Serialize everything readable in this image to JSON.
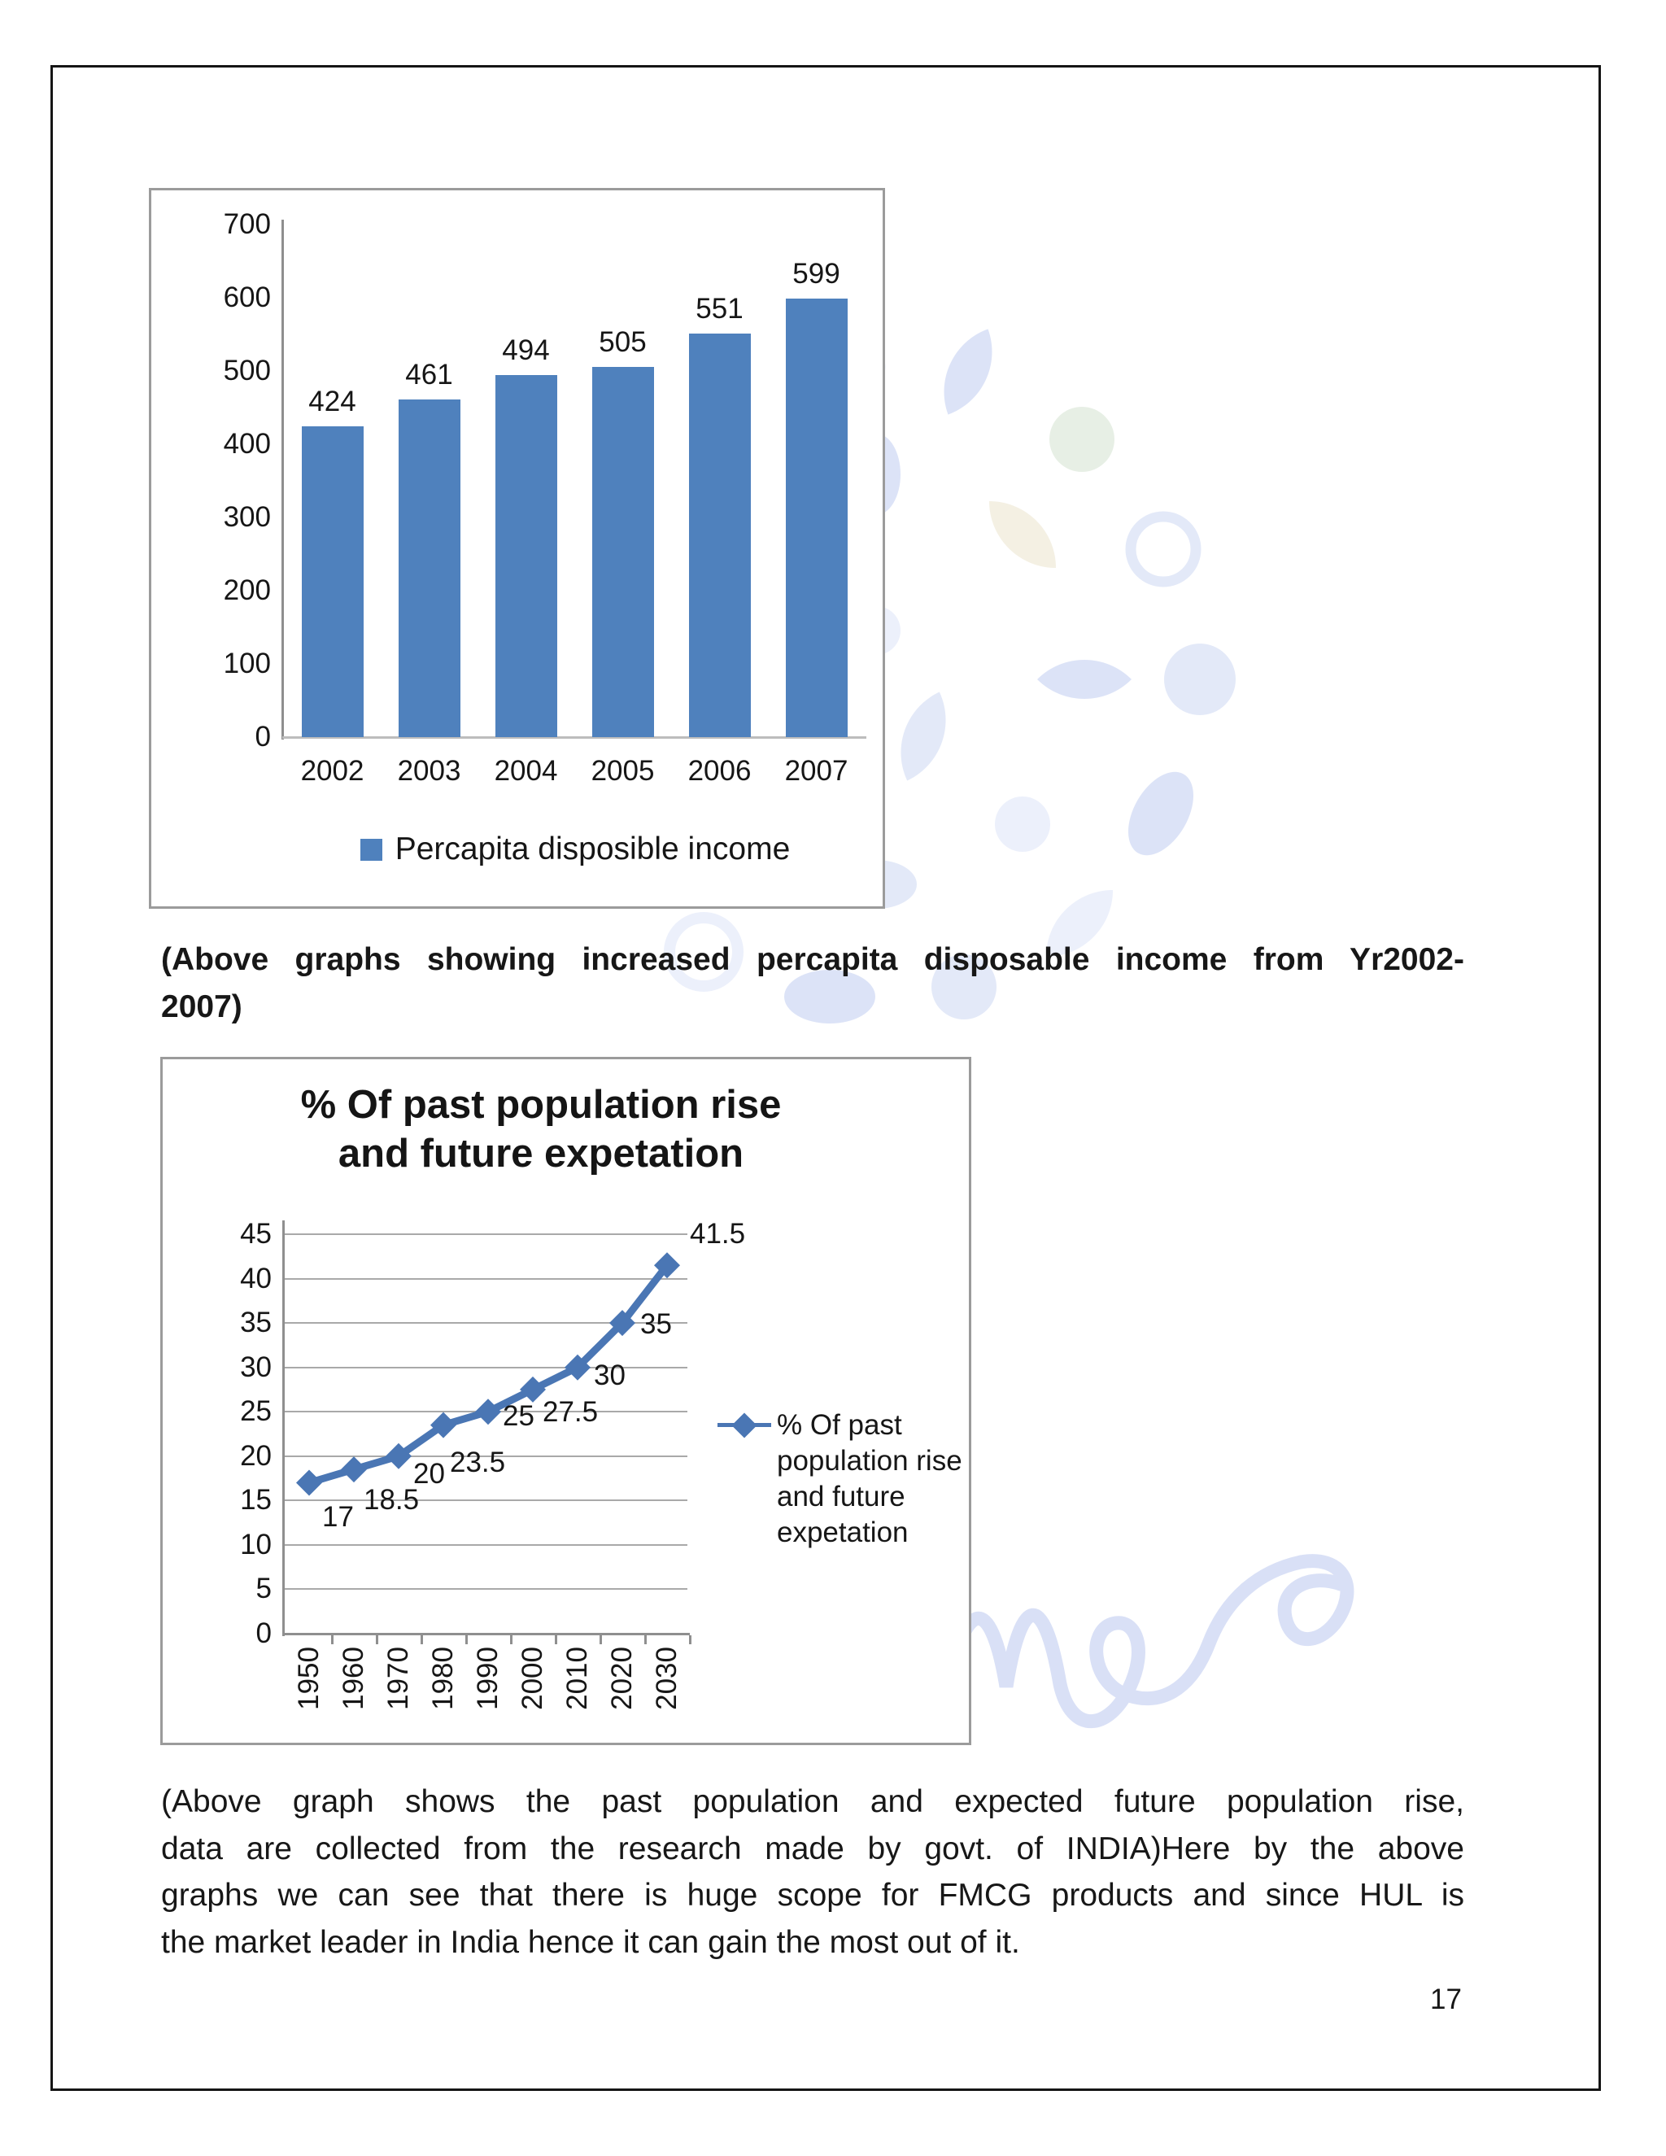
{
  "page": {
    "number": "17"
  },
  "caption1": {
    "lines": [
      "(Above graphs showing increased percapita disposable income from Yr2002-",
      "2007)"
    ]
  },
  "caption2": {
    "lines": [
      "(Above graph shows the past population and expected future population rise,",
      "data are collected from the research made by govt. of INDIA)Here by the above",
      "graphs we can see that there is huge scope for FMCG products and since HUL is",
      "the market leader in India hence it can gain the most out of it."
    ]
  },
  "watermark": {
    "color": "#c8d4f2"
  },
  "chart_data": [
    {
      "type": "bar",
      "categories": [
        "2002",
        "2003",
        "2004",
        "2005",
        "2006",
        "2007"
      ],
      "values": [
        424,
        461,
        494,
        505,
        551,
        599
      ],
      "value_labels": [
        "424",
        "461",
        "494",
        "505",
        "551",
        "599"
      ],
      "legend": "Percapita disposible income",
      "ylim": [
        0,
        700
      ],
      "yticks": [
        0,
        100,
        200,
        300,
        400,
        500,
        600,
        700
      ],
      "bar_color": "#4f81bd",
      "grid": false,
      "legend_position": "bottom",
      "title": "",
      "xlabel": "",
      "ylabel": ""
    },
    {
      "type": "line",
      "title": "% Of past population rise and future expetation",
      "title_lines": [
        "% Of past population rise",
        "and future expetation"
      ],
      "x": [
        "1950",
        "1960",
        "1970",
        "1980",
        "1990",
        "2000",
        "2010",
        "2020",
        "2030"
      ],
      "values": [
        17,
        18.5,
        20,
        23.5,
        25,
        27.5,
        30,
        35,
        41.5
      ],
      "labels": [
        "17",
        "18.5",
        "20",
        "23.5",
        "25",
        "27.5",
        "30",
        "35",
        "41.5"
      ],
      "legend": "% Of past population rise and future expetation",
      "legend_lines": [
        "% Of past",
        "population rise",
        "and future",
        "expetation"
      ],
      "ylim": [
        0,
        45
      ],
      "yticks": [
        0,
        5,
        10,
        15,
        20,
        25,
        30,
        35,
        40,
        45
      ],
      "line_color": "#4a76b4",
      "marker": "diamond",
      "grid": true,
      "legend_position": "right",
      "xlabel": "",
      "ylabel": ""
    }
  ]
}
